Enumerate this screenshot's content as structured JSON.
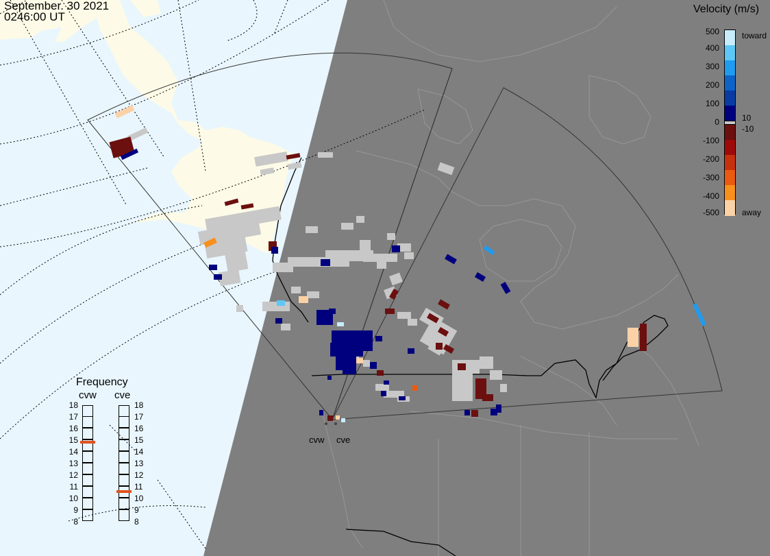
{
  "header": {
    "date": "September. 30 2021",
    "time": "0246:00 UT"
  },
  "colorbar": {
    "title": "Velocity (m/s)",
    "ticks": [
      "500",
      "400",
      "300",
      "200",
      "100",
      "0",
      "-100",
      "-200",
      "-300",
      "-400",
      "-500"
    ],
    "inner_ticks": [
      "10",
      "-10"
    ],
    "toward_label": "toward",
    "away_label": "away",
    "colors": [
      "#c8ecfb",
      "#5ec7f5",
      "#1f9cef",
      "#0d63c7",
      "#083ca3",
      "#00007e",
      "#6b0f0f",
      "#9e0a0a",
      "#c6310d",
      "#ea5a10",
      "#f7901c",
      "#fcd1a6"
    ]
  },
  "frequency": {
    "title": "Frequency",
    "radars": [
      {
        "name": "cvw",
        "value_mhz": 14.8
      },
      {
        "name": "cve",
        "value_mhz": 10.6
      }
    ],
    "ticks": [
      "18",
      "17",
      "16",
      "15",
      "14",
      "13",
      "12",
      "11",
      "10",
      "9",
      "8"
    ],
    "marker_color": "#e0531e"
  },
  "radar_sites": [
    "cvw",
    "cve"
  ],
  "map_colors": {
    "ocean": "#e9f6fd",
    "land": "#fdfbe7",
    "night": "#7f7f7f",
    "ground_scatter": "#c8c8c8"
  }
}
